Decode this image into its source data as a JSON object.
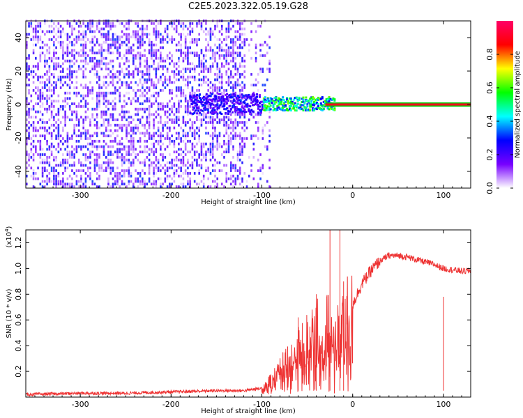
{
  "title": "C2E5.2023.322.05.19.G28",
  "chart_data": [
    {
      "type": "heatmap",
      "xlabel": "Height of straight line (km)",
      "ylabel": "Frequency (Hz)",
      "xlim": [
        -360,
        130
      ],
      "ylim": [
        -50,
        50
      ],
      "x_ticks": [
        -300,
        -200,
        -100,
        0,
        100
      ],
      "y_ticks": [
        -40,
        -20,
        0,
        20,
        40
      ],
      "colorbar": {
        "label": "Normalized spectral amplitude",
        "range": [
          0,
          1
        ],
        "ticks": [
          "0.0",
          "0.2",
          "0.4",
          "0.6",
          "0.8"
        ],
        "colors": [
          "#ffffff",
          "#7700ff",
          "#0000ff",
          "#00ffff",
          "#00ff00",
          "#ffff00",
          "#ff0000",
          "#ff0066"
        ]
      },
      "features": {
        "noise_region_x": [
          -360,
          -100
        ],
        "noise_amplitude": 0.3,
        "signal_line_x": [
          -30,
          130
        ],
        "signal_line_freq": 0,
        "signal_line_amplitude": 0.9,
        "transition_x": [
          -100,
          -30
        ],
        "transition_amplitude": 0.5
      }
    },
    {
      "type": "line",
      "xlabel": "Height of straight line (km)",
      "ylabel": "SNR (10 * v/v)",
      "y_multiplier": "(x10",
      "y_multiplier_exp": "4",
      "xlim": [
        -360,
        130
      ],
      "ylim": [
        0,
        1.3
      ],
      "x_ticks": [
        -300,
        -200,
        -100,
        0,
        100
      ],
      "y_ticks": [
        "0.2",
        "0.4",
        "0.6",
        "0.8",
        "1.0",
        "1.2"
      ],
      "series": [
        {
          "color": "#ee3333",
          "x": [
            -360,
            -300,
            -250,
            -200,
            -150,
            -120,
            -100,
            -90,
            -80,
            -70,
            -60,
            -50,
            -40,
            -30,
            -20,
            -10,
            0,
            10,
            20,
            30,
            40,
            50,
            60,
            70,
            80,
            90,
            100,
            110,
            120,
            130
          ],
          "y": [
            0.02,
            0.03,
            0.03,
            0.04,
            0.05,
            0.05,
            0.07,
            0.12,
            0.2,
            0.3,
            0.35,
            0.42,
            0.5,
            0.55,
            0.45,
            0.55,
            0.72,
            0.88,
            0.98,
            1.06,
            1.1,
            1.1,
            1.09,
            1.07,
            1.05,
            1.03,
            1.0,
            0.99,
            0.98,
            0.98
          ]
        }
      ],
      "spikes": [
        {
          "x": -60,
          "y": 0.62
        },
        {
          "x": -40,
          "y": 0.8
        },
        {
          "x": -25,
          "y": 1.3
        },
        {
          "x": -14,
          "y": 1.3
        },
        {
          "x": -10,
          "y": 0.9
        },
        {
          "x": 100,
          "y": 0.78
        }
      ]
    }
  ]
}
